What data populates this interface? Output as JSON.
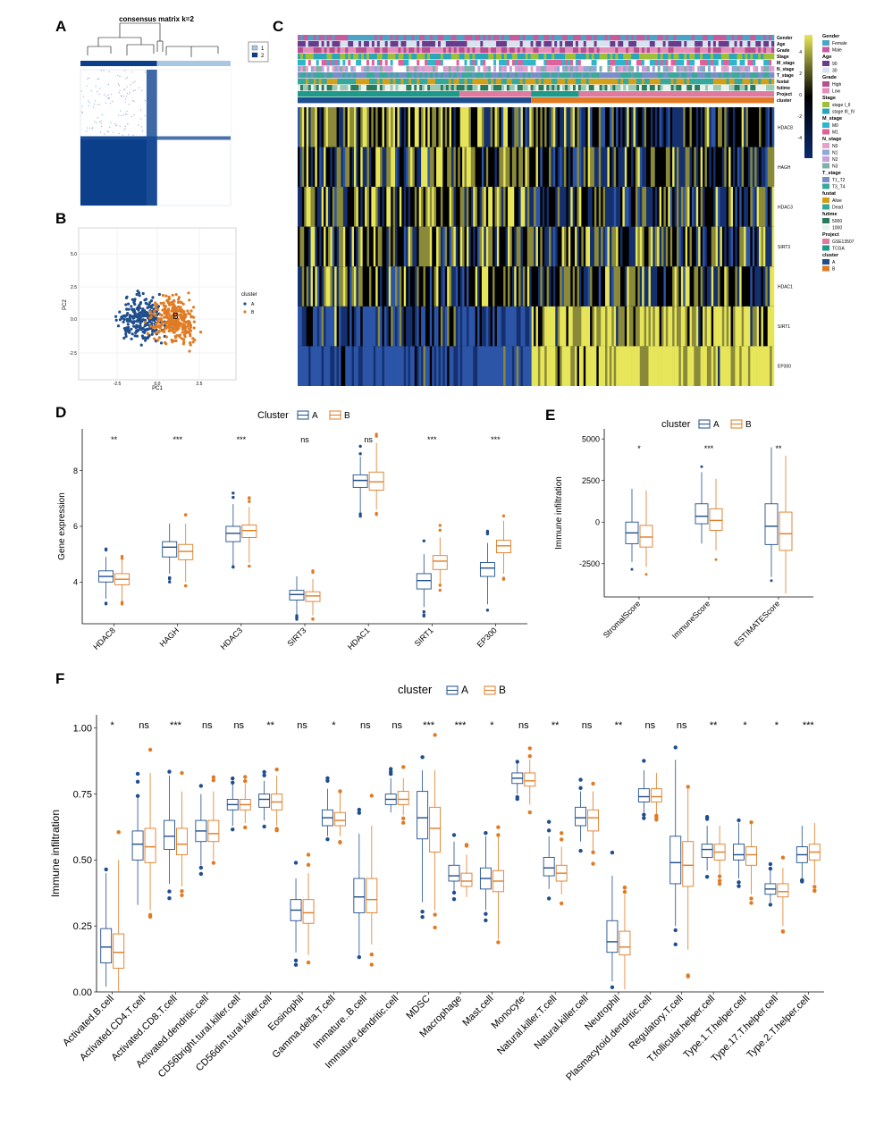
{
  "panels": {
    "A": "A",
    "B": "B",
    "C": "C",
    "D": "D",
    "E": "E",
    "F": "F"
  },
  "colors": {
    "A": "#1f4e8c",
    "B": "#e07b24",
    "heat_low": "#0a2a6e",
    "heat_mid": "#000000",
    "heat_high": "#e7e65a"
  },
  "panel_a": {
    "title": "consensus matrix k=2",
    "legend": [
      "1",
      "2"
    ],
    "legend_colors": [
      "#a8c7e3",
      "#0b3f8a"
    ]
  },
  "panel_b": {
    "xlabel": "PC1",
    "ylabel": "PC2",
    "legend_title": "cluster",
    "legend": [
      "A",
      "B"
    ],
    "xticks": [
      "-2.5",
      "0.0",
      "2.5"
    ],
    "yticks": [
      "5.0",
      "2.5",
      "0.0",
      "-2.5"
    ],
    "centroid_label": "B"
  },
  "panel_c": {
    "annotation_rows": [
      "Gender",
      "Age",
      "Grade",
      "Stage",
      "M_stage",
      "N_stage",
      "T_stage",
      "fustat",
      "futime",
      "Project",
      "cluster"
    ],
    "gene_rows": [
      "HDAC8",
      "HAGH",
      "HDAC3",
      "SIRT3",
      "HDAC1",
      "SIRT1",
      "EP300"
    ],
    "scale_ticks": [
      "4",
      "2",
      "0",
      "-2",
      "-4"
    ],
    "legend_groups": [
      {
        "title": "Gender",
        "items": [
          {
            "label": "Female",
            "color": "#4ba3c7"
          },
          {
            "label": "Male",
            "color": "#c75b9e"
          }
        ]
      },
      {
        "title": "Age",
        "items": [
          {
            "label": "90",
            "color": "#6a3a8c"
          },
          {
            "label": "30",
            "color": "#d9e3ef"
          }
        ]
      },
      {
        "title": "Grade",
        "items": [
          {
            "label": "High",
            "color": "#b5508f"
          },
          {
            "label": "Low",
            "color": "#e58fb8"
          }
        ]
      },
      {
        "title": "Stage",
        "items": [
          {
            "label": "stage I_II",
            "color": "#9fbf3b"
          },
          {
            "label": "stage III_IV",
            "color": "#2aa6b8"
          }
        ]
      },
      {
        "title": "M_stage",
        "items": [
          {
            "label": "M0",
            "color": "#2fb5c9"
          },
          {
            "label": "M1",
            "color": "#e0609a"
          }
        ]
      },
      {
        "title": "N_stage",
        "items": [
          {
            "label": "N0",
            "color": "#e8a0c8"
          },
          {
            "label": "N1",
            "color": "#8fa9d6"
          },
          {
            "label": "N2",
            "color": "#c7a0d9"
          },
          {
            "label": "N3",
            "color": "#7fb0a8"
          }
        ]
      },
      {
        "title": "T_stage",
        "items": [
          {
            "label": "T1_T2",
            "color": "#7a8fc9"
          },
          {
            "label": "T3_T4",
            "color": "#3aa89a"
          }
        ]
      },
      {
        "title": "fustat",
        "items": [
          {
            "label": "Alive",
            "color": "#d4a017"
          },
          {
            "label": "Dead",
            "color": "#36a89a"
          }
        ]
      },
      {
        "title": "futime",
        "items": [
          {
            "label": "5000",
            "color": "#2b7a5c"
          },
          {
            "label": "1000",
            "color": "#e8f2ec"
          }
        ]
      },
      {
        "title": "Project",
        "items": [
          {
            "label": "GSE13507",
            "color": "#e07a9f"
          },
          {
            "label": "TCGA",
            "color": "#1f9a8a"
          }
        ]
      },
      {
        "title": "cluster",
        "items": [
          {
            "label": "A",
            "color": "#1f4e8c"
          },
          {
            "label": "B",
            "color": "#e07b24"
          }
        ]
      }
    ]
  },
  "chart_data": [
    {
      "panel": "D",
      "type": "box",
      "title": "",
      "legend_title": "Cluster",
      "series_names": [
        "A",
        "B"
      ],
      "xlabel": "",
      "ylabel": "Gene expression",
      "ylim": [
        2.5,
        9.5
      ],
      "yticks": [
        4,
        6,
        8
      ],
      "categories": [
        "HDAC8",
        "HAGH",
        "HDAC3",
        "SIRT3",
        "HDAC1",
        "SIRT1",
        "EP300"
      ],
      "significance": [
        "**",
        "***",
        "***",
        "ns",
        "ns",
        "***",
        "***"
      ],
      "series": [
        {
          "name": "A",
          "boxes": [
            [
              3.4,
              4.0,
              4.2,
              4.4,
              4.9
            ],
            [
              4.3,
              4.9,
              5.25,
              5.45,
              6.1
            ],
            [
              4.6,
              5.45,
              5.75,
              6.0,
              6.8
            ],
            [
              2.8,
              3.35,
              3.55,
              3.7,
              4.2
            ],
            [
              6.5,
              7.4,
              7.65,
              7.85,
              8.5
            ],
            [
              3.1,
              3.75,
              4.05,
              4.3,
              5.0
            ],
            [
              3.2,
              4.2,
              4.5,
              4.7,
              5.4
            ]
          ]
        },
        {
          "name": "B",
          "boxes": [
            [
              3.3,
              3.9,
              4.1,
              4.3,
              4.8
            ],
            [
              4.0,
              4.8,
              5.1,
              5.35,
              6.1
            ],
            [
              4.7,
              5.6,
              5.85,
              6.05,
              6.7
            ],
            [
              2.8,
              3.3,
              3.5,
              3.65,
              4.1
            ],
            [
              6.6,
              7.3,
              7.6,
              7.95,
              9.0
            ],
            [
              3.9,
              4.45,
              4.75,
              4.95,
              5.6
            ],
            [
              4.3,
              5.05,
              5.3,
              5.5,
              6.2
            ]
          ]
        }
      ]
    },
    {
      "panel": "E",
      "type": "box",
      "title": "",
      "legend_title": "cluster",
      "series_names": [
        "A",
        "B"
      ],
      "xlabel": "",
      "ylabel": "Immune infiltration",
      "ylim": [
        -4500,
        5600
      ],
      "yticks": [
        -2500,
        0,
        2500,
        5000
      ],
      "categories": [
        "StromalScore",
        "ImmuneScore",
        "ESTIMATEScore"
      ],
      "significance": [
        "*",
        "***",
        "**"
      ],
      "series": [
        {
          "name": "A",
          "boxes": [
            [
              -2400,
              -1300,
              -650,
              0,
              2000
            ],
            [
              -1300,
              -100,
              350,
              1100,
              3000
            ],
            [
              -3300,
              -1350,
              -250,
              1100,
              4500
            ]
          ]
        },
        {
          "name": "B",
          "boxes": [
            [
              -2700,
              -1500,
              -900,
              -200,
              1900
            ],
            [
              -1700,
              -500,
              100,
              800,
              2600
            ],
            [
              -4300,
              -1700,
              -700,
              600,
              4000
            ]
          ]
        }
      ]
    },
    {
      "panel": "F",
      "type": "box",
      "title": "",
      "legend_title": "cluster",
      "series_names": [
        "A",
        "B"
      ],
      "xlabel": "",
      "ylabel": "Immune infiltration",
      "ylim": [
        0,
        1.05
      ],
      "yticks": [
        0.0,
        0.25,
        0.5,
        0.75,
        1.0
      ],
      "ytick_labels": [
        "0.00",
        "0.25",
        "0.50",
        "0.75",
        "1.00"
      ],
      "categories": [
        "Activated.B.cell",
        "Activated.CD4.T.cell",
        "Activated.CD8.T.cell",
        "Activated.dendritic.cell",
        "CD56bright.tural.killer.cell",
        "CD56dim.tural.killer.cell",
        "Eosinophil",
        "Gamma.delta.T.cell",
        "Immature..B.cell",
        "Immature.dendritic.cell",
        "MDSC",
        "Macrophage",
        "Mast.cell",
        "Monocyte",
        "Natural.killer.T.cell",
        "Natural.killer.cell",
        "Neutrophil",
        "Plasmacytoid.dendritic.cell",
        "Regulatory.T.cell",
        "T.follicular.helper.cell",
        "Type.1.T.helper.cell",
        "Type.17.T.helper.cell",
        "Type.2.T.helper.cell"
      ],
      "significance": [
        "*",
        "ns",
        "***",
        "ns",
        "ns",
        "**",
        "ns",
        "*",
        "ns",
        "ns",
        "***",
        "***",
        "*",
        "ns",
        "**",
        "ns",
        "**",
        "ns",
        "ns",
        "**",
        "*",
        "*",
        "***"
      ],
      "series": [
        {
          "name": "A",
          "boxes": [
            [
              0.02,
              0.11,
              0.17,
              0.24,
              0.45
            ],
            [
              0.33,
              0.5,
              0.56,
              0.61,
              0.74
            ],
            [
              0.41,
              0.54,
              0.59,
              0.65,
              0.82
            ],
            [
              0.48,
              0.57,
              0.61,
              0.65,
              0.75
            ],
            [
              0.63,
              0.69,
              0.71,
              0.73,
              0.79
            ],
            [
              0.65,
              0.7,
              0.73,
              0.75,
              0.8
            ],
            [
              0.15,
              0.27,
              0.31,
              0.35,
              0.43
            ],
            [
              0.59,
              0.63,
              0.66,
              0.69,
              0.77
            ],
            [
              0.14,
              0.3,
              0.36,
              0.43,
              0.6
            ],
            [
              0.68,
              0.71,
              0.73,
              0.75,
              0.81
            ],
            [
              0.34,
              0.58,
              0.66,
              0.76,
              0.84
            ],
            [
              0.38,
              0.42,
              0.44,
              0.48,
              0.57
            ],
            [
              0.31,
              0.39,
              0.43,
              0.47,
              0.59
            ],
            [
              0.75,
              0.79,
              0.81,
              0.83,
              0.87
            ],
            [
              0.39,
              0.44,
              0.47,
              0.51,
              0.59
            ],
            [
              0.57,
              0.63,
              0.66,
              0.7,
              0.76
            ],
            [
              0.04,
              0.15,
              0.19,
              0.27,
              0.44
            ],
            [
              0.68,
              0.72,
              0.74,
              0.77,
              0.84
            ],
            [
              0.25,
              0.41,
              0.49,
              0.59,
              0.88
            ],
            [
              0.46,
              0.51,
              0.54,
              0.56,
              0.63
            ],
            [
              0.43,
              0.5,
              0.52,
              0.56,
              0.64
            ],
            [
              0.34,
              0.37,
              0.39,
              0.41,
              0.46
            ],
            [
              0.43,
              0.49,
              0.52,
              0.55,
              0.63
            ]
          ]
        },
        {
          "name": "B",
          "boxes": [
            [
              0.0,
              0.09,
              0.15,
              0.22,
              0.5
            ],
            [
              0.31,
              0.49,
              0.55,
              0.62,
              0.83
            ],
            [
              0.4,
              0.52,
              0.56,
              0.62,
              0.76
            ],
            [
              0.5,
              0.57,
              0.6,
              0.65,
              0.76
            ],
            [
              0.64,
              0.69,
              0.71,
              0.73,
              0.79
            ],
            [
              0.63,
              0.69,
              0.72,
              0.75,
              0.82
            ],
            [
              0.14,
              0.26,
              0.3,
              0.35,
              0.45
            ],
            [
              0.59,
              0.63,
              0.65,
              0.68,
              0.76
            ],
            [
              0.18,
              0.3,
              0.35,
              0.43,
              0.63
            ],
            [
              0.67,
              0.71,
              0.73,
              0.76,
              0.81
            ],
            [
              0.31,
              0.53,
              0.62,
              0.7,
              0.84
            ],
            [
              0.36,
              0.4,
              0.42,
              0.45,
              0.52
            ],
            [
              0.2,
              0.38,
              0.42,
              0.46,
              0.59
            ],
            [
              0.71,
              0.78,
              0.8,
              0.83,
              0.88
            ],
            [
              0.37,
              0.42,
              0.45,
              0.48,
              0.55
            ],
            [
              0.53,
              0.61,
              0.66,
              0.69,
              0.76
            ],
            [
              0.01,
              0.14,
              0.17,
              0.23,
              0.37
            ],
            [
              0.67,
              0.72,
              0.74,
              0.77,
              0.83
            ],
            [
              0.16,
              0.4,
              0.48,
              0.57,
              0.77
            ],
            [
              0.44,
              0.5,
              0.53,
              0.56,
              0.63
            ],
            [
              0.37,
              0.48,
              0.52,
              0.55,
              0.64
            ],
            [
              0.25,
              0.36,
              0.38,
              0.41,
              0.47
            ],
            [
              0.41,
              0.5,
              0.53,
              0.56,
              0.64
            ]
          ]
        }
      ]
    }
  ]
}
